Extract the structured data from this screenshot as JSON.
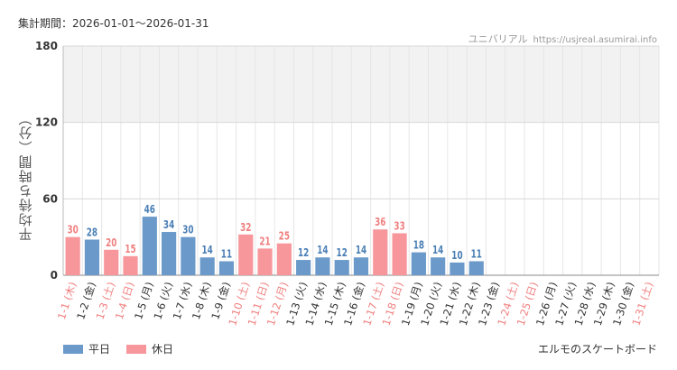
{
  "header": {
    "period_label": "集計期間：2026-01-01～2026-01-31",
    "source_name": "ユニバリアル",
    "source_url": "https://usjreal.asumirai.info"
  },
  "footer": {
    "attraction_name": "エルモのスケートボード"
  },
  "colors": {
    "weekday": "#6b9aca",
    "holiday": "#f7979c",
    "holiday_label": "#f08080",
    "weekday_label": "#4a7fb5"
  },
  "chart_data": {
    "type": "bar",
    "ylabel": "平均待ち時間（分）",
    "ylim": [
      0,
      180
    ],
    "yticks": [
      0,
      60,
      120,
      180
    ],
    "shaded_band": [
      120,
      180
    ],
    "legend": [
      {
        "name": "平日",
        "kind": "weekday"
      },
      {
        "name": "休日",
        "kind": "holiday"
      }
    ],
    "categories": [
      "1-1 (木)",
      "1-2 (金)",
      "1-3 (土)",
      "1-4 (日)",
      "1-5 (月)",
      "1-6 (火)",
      "1-7 (水)",
      "1-8 (木)",
      "1-9 (金)",
      "1-10 (土)",
      "1-11 (日)",
      "1-12 (月)",
      "1-13 (火)",
      "1-14 (水)",
      "1-15 (木)",
      "1-16 (金)",
      "1-17 (土)",
      "1-18 (日)",
      "1-19 (月)",
      "1-20 (火)",
      "1-21 (水)",
      "1-22 (木)",
      "1-23 (金)",
      "1-24 (土)",
      "1-25 (日)",
      "1-26 (月)",
      "1-27 (火)",
      "1-28 (水)",
      "1-29 (木)",
      "1-30 (金)",
      "1-31 (土)"
    ],
    "values": [
      30,
      28,
      20,
      15,
      46,
      34,
      30,
      14,
      11,
      32,
      21,
      25,
      12,
      14,
      12,
      14,
      36,
      33,
      18,
      14,
      10,
      11,
      null,
      null,
      null,
      null,
      null,
      null,
      null,
      null,
      null
    ],
    "kinds": [
      "holiday",
      "weekday",
      "holiday",
      "holiday",
      "weekday",
      "weekday",
      "weekday",
      "weekday",
      "weekday",
      "holiday",
      "holiday",
      "holiday",
      "weekday",
      "weekday",
      "weekday",
      "weekday",
      "holiday",
      "holiday",
      "weekday",
      "weekday",
      "weekday",
      "weekday",
      "weekday",
      "holiday",
      "holiday",
      "weekday",
      "weekday",
      "weekday",
      "weekday",
      "weekday",
      "holiday"
    ]
  }
}
